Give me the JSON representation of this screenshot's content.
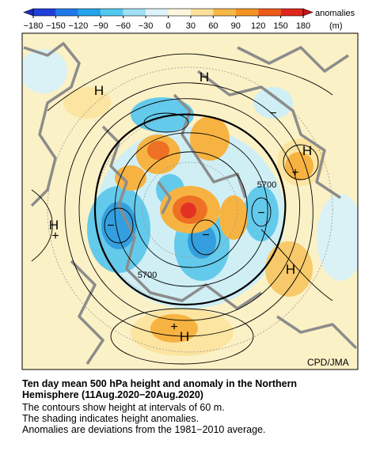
{
  "colorbar": {
    "ticks": [
      "−180",
      "−150",
      "−120",
      "−90",
      "−60",
      "−30",
      "0",
      "30",
      "60",
      "90",
      "120",
      "150",
      "180"
    ],
    "label": "anomalies",
    "unit": "(m)"
  },
  "map": {
    "labels": [
      "H",
      "H",
      "H",
      "H",
      "H",
      "H",
      "+",
      "+",
      "+",
      "−",
      "−",
      "−",
      "−",
      "5700",
      "5700"
    ],
    "credit": "CPD/JMA"
  },
  "caption": {
    "title": "Ten day mean 500 hPa height and anomaly in the Northern Hemisphere (11Aug.2020−20Aug.2020)",
    "lines": [
      "The contours show height at intervals of 60 m.",
      "The shading indicates height anomalies.",
      "Anomalies are deviations from the 1981−2010 average."
    ]
  }
}
